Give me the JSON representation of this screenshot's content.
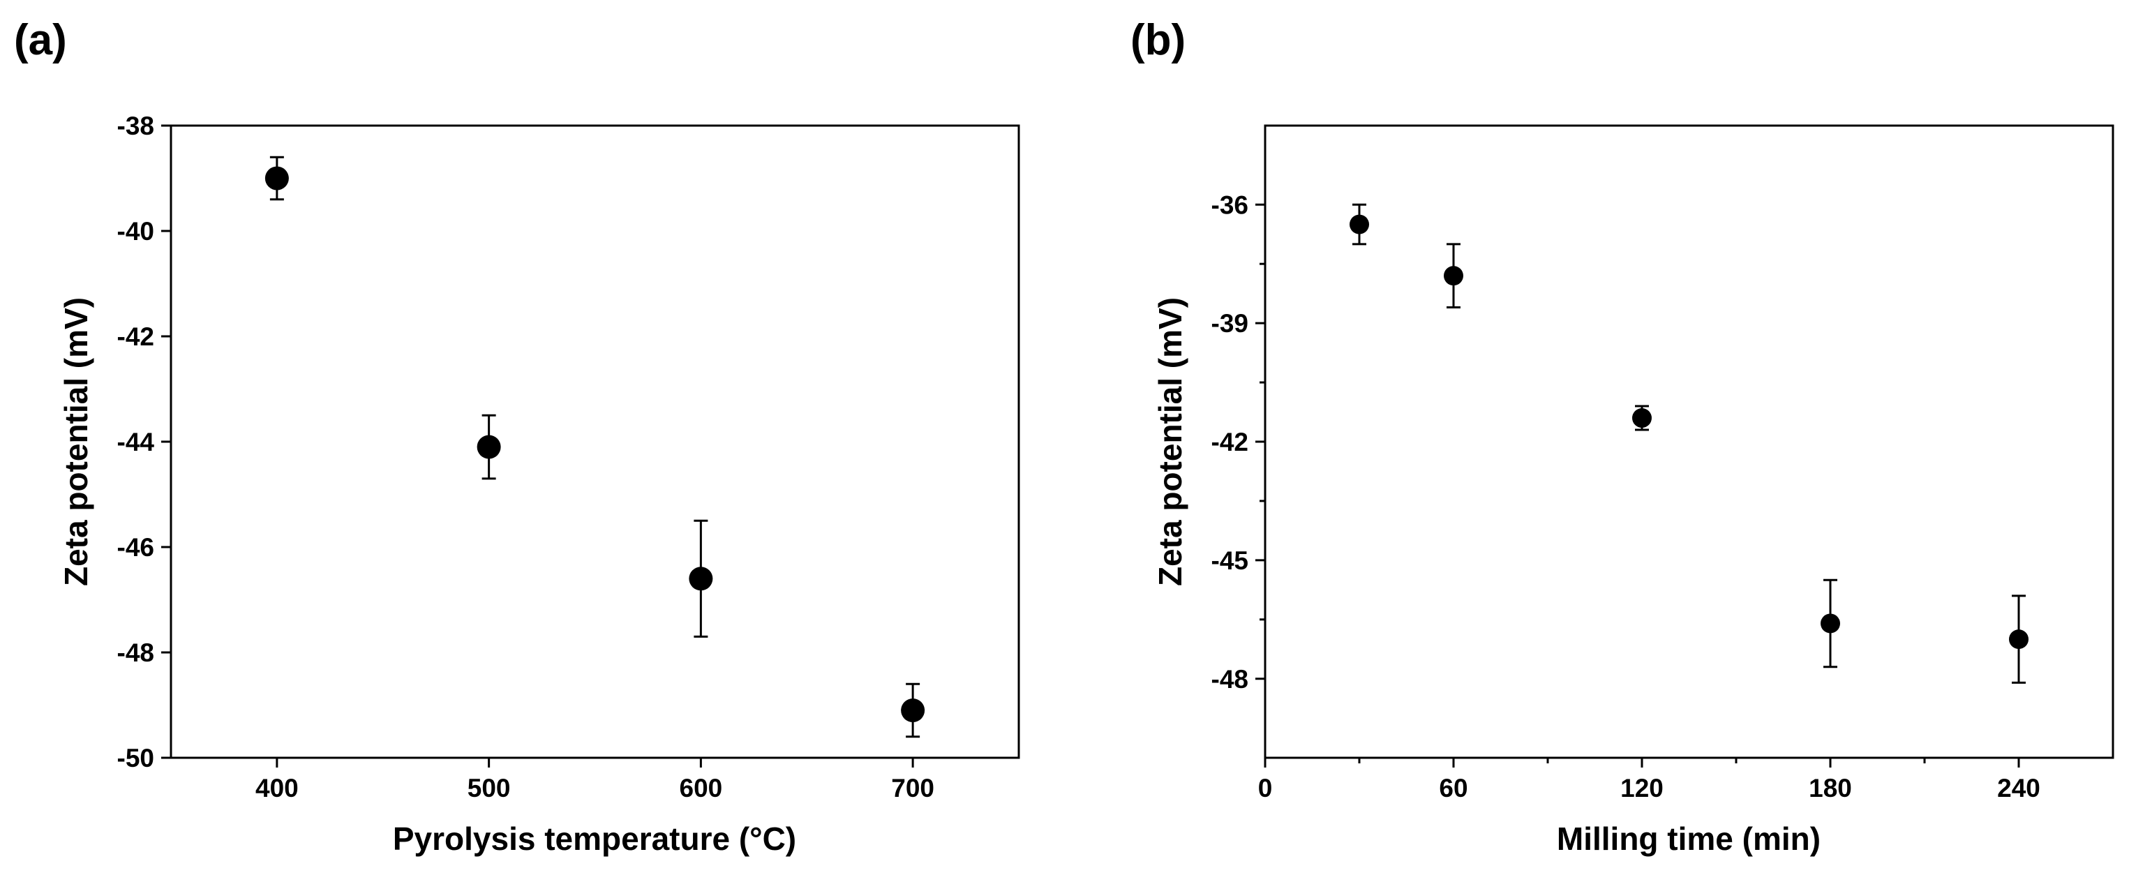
{
  "chart_data": [
    {
      "type": "scatter",
      "panel_label": "(a)",
      "xlabel": "Pyrolysis temperature (°C)",
      "ylabel": "Zeta potential (mV)",
      "xlim": [
        350,
        750
      ],
      "ylim": [
        -50,
        -38
      ],
      "xticks": [
        400,
        500,
        600,
        700
      ],
      "yticks": [
        -50,
        -48,
        -46,
        -44,
        -42,
        -40,
        -38
      ],
      "grid": false,
      "marker_color": "#000000",
      "points": [
        {
          "x": 400,
          "y": -39.0,
          "err": 0.4
        },
        {
          "x": 500,
          "y": -44.1,
          "err": 0.6
        },
        {
          "x": 600,
          "y": -46.6,
          "err": 1.1
        },
        {
          "x": 700,
          "y": -49.1,
          "err": 0.5
        }
      ]
    },
    {
      "type": "scatter",
      "panel_label": "(b)",
      "xlabel": "Milling time (min)",
      "ylabel": "Zeta potential (mV)",
      "xlim": [
        0,
        270
      ],
      "ylim": [
        -50,
        -34
      ],
      "xticks": [
        0,
        60,
        120,
        180,
        240
      ],
      "yticks": [
        -36,
        -39,
        -42,
        -45,
        -48
      ],
      "grid": false,
      "marker_color": "#000000",
      "points": [
        {
          "x": 30,
          "y": -36.5,
          "err": 0.5
        },
        {
          "x": 60,
          "y": -37.8,
          "err": 0.8
        },
        {
          "x": 120,
          "y": -41.4,
          "err": 0.3
        },
        {
          "x": 180,
          "y": -46.6,
          "err": 1.1
        },
        {
          "x": 240,
          "y": -47.0,
          "err": 1.1
        }
      ]
    }
  ]
}
